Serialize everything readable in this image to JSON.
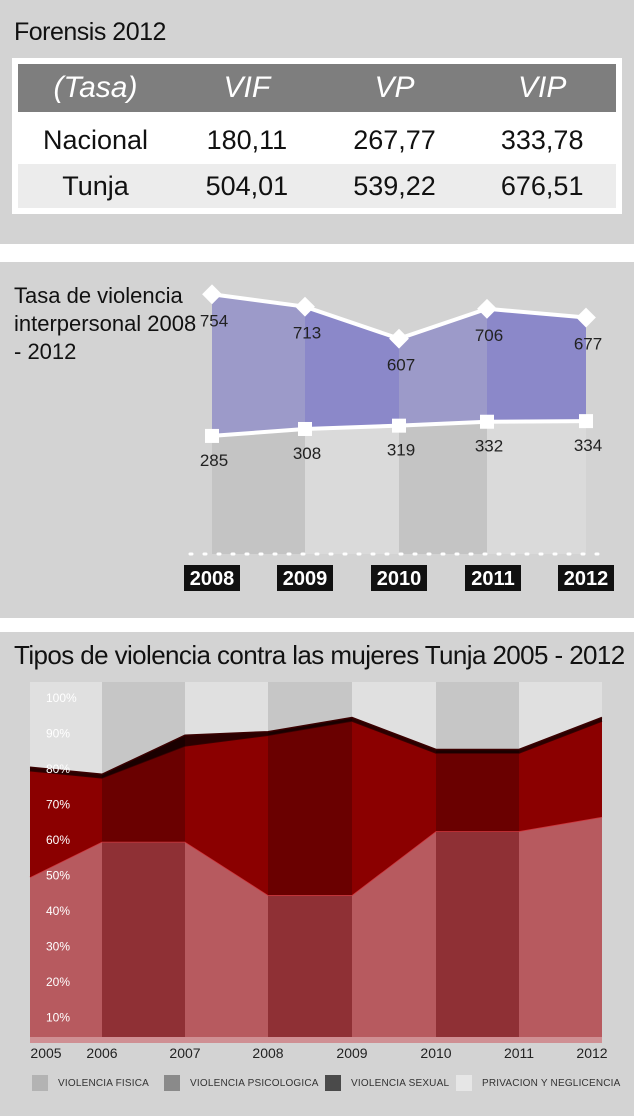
{
  "panel1": {
    "title": "Forensis 2012",
    "header": [
      "(Tasa)",
      "VIF",
      "VP",
      "VIP"
    ],
    "rows": [
      [
        "Nacional",
        "180,11",
        "267,77",
        "333,78"
      ],
      [
        "Tunja",
        "504,01",
        "539,22",
        "676,51"
      ]
    ]
  },
  "panel2": {
    "title": "Tasa de violencia interpersonal 2008 - 2012",
    "chart_data": {
      "type": "area",
      "title": "Tasa de violencia interpersonal 2008 - 2012",
      "categories": [
        "2008",
        "2009",
        "2010",
        "2011",
        "2012"
      ],
      "series": [
        {
          "values": [
            754,
            713,
            607,
            706,
            677
          ],
          "color": "#8b88c9"
        },
        {
          "values": [
            285,
            308,
            319,
            332,
            334
          ],
          "color": "#ffffff"
        }
      ],
      "labels_top": [
        "754",
        "713",
        "607",
        "706",
        "677"
      ],
      "labels_bottom": [
        "285",
        "308",
        "319",
        "332",
        "334"
      ]
    }
  },
  "panel3": {
    "title": "Tipos de violencia contra las mujeres Tunja 2005 - 2012",
    "chart_data": {
      "type": "area",
      "title": "Tipos de violencia contra las mujeres Tunja 2005 - 2012",
      "x": [
        "2005",
        "2006",
        "2007",
        "2008",
        "2009",
        "2010",
        "2011",
        "2012"
      ],
      "yticks": [
        "10%",
        "20%",
        "30%",
        "40%",
        "50%",
        "60%",
        "70%",
        "80%",
        "90%",
        "100%"
      ],
      "ylim": [
        0,
        100
      ],
      "series": [
        {
          "name": "VIOLENCIA FISICA",
          "values": [
            45,
            55,
            55,
            40,
            40,
            58,
            58,
            62
          ],
          "color": "#b75a5f"
        },
        {
          "name": "VIOLENCIA PSICOLOGICA",
          "values": [
            30,
            18,
            27,
            45,
            49,
            22,
            22,
            27
          ],
          "color": "#8b0000"
        },
        {
          "name": "VIOLENCIA SEXUAL",
          "values": [
            1,
            1,
            3,
            1,
            1,
            1,
            1,
            1
          ],
          "color": "#2a0000"
        },
        {
          "name": "PRIVACION Y NEGLICENCIA",
          "values": [
            24,
            26,
            15,
            14,
            10,
            19,
            19,
            10
          ],
          "color": "#e0e0e0"
        }
      ]
    },
    "legend": [
      {
        "label": "VIOLENCIA FISICA",
        "color": "#b3b3b3"
      },
      {
        "label": "VIOLENCIA PSICOLOGICA",
        "color": "#8a8a8a"
      },
      {
        "label": "VIOLENCIA SEXUAL",
        "color": "#4a4a4a"
      },
      {
        "label": "PRIVACION Y NEGLICENCIA",
        "color": "#e6e6e6"
      }
    ]
  }
}
